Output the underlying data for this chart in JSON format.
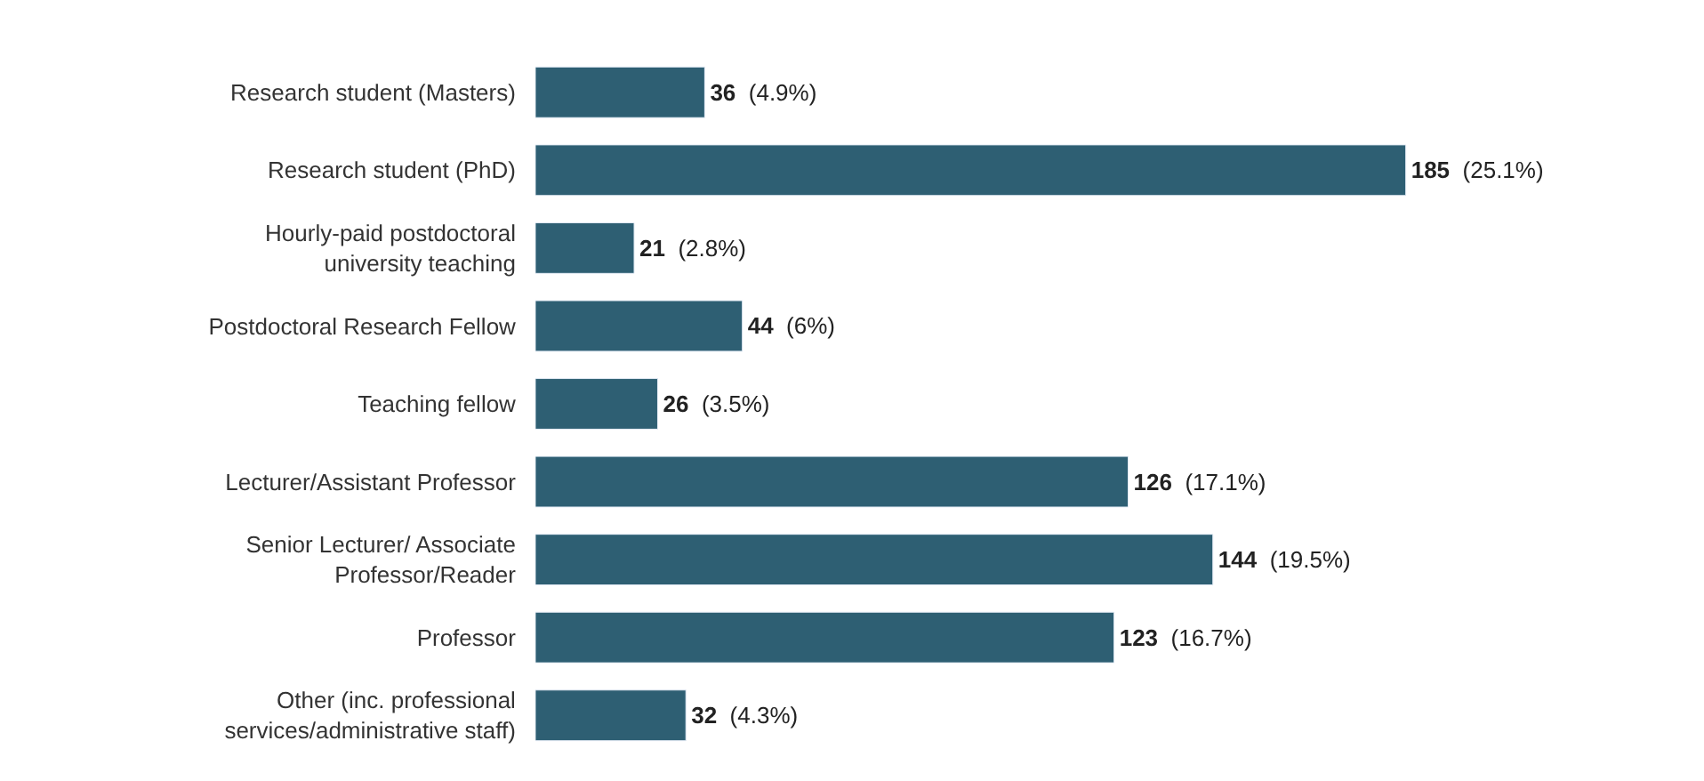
{
  "chart_data": {
    "type": "bar",
    "orientation": "horizontal",
    "color": "#2e5f73",
    "categories": [
      "Research student (Masters)",
      "Research student (PhD)",
      "Hourly-paid postdoctoral\nuniversity teaching",
      "Postdoctoral Research Fellow",
      "Teaching fellow",
      "Lecturer/Assistant Professor",
      "Senior Lecturer/ Associate\nProfessor/Reader",
      "Professor",
      "Other (inc. professional\nservices/administrative staff)"
    ],
    "values": [
      36,
      185,
      21,
      44,
      26,
      126,
      144,
      123,
      32
    ],
    "value_labels": [
      "36 (4.9%)",
      "185 (25.1%)",
      "21 (2.8%)",
      "44 (6%)",
      "26 (3.5%)",
      "126 (17.1%)",
      "144 (19.5%)",
      "123 (16.7%)",
      "32 (4.3%)"
    ],
    "title": null
  }
}
